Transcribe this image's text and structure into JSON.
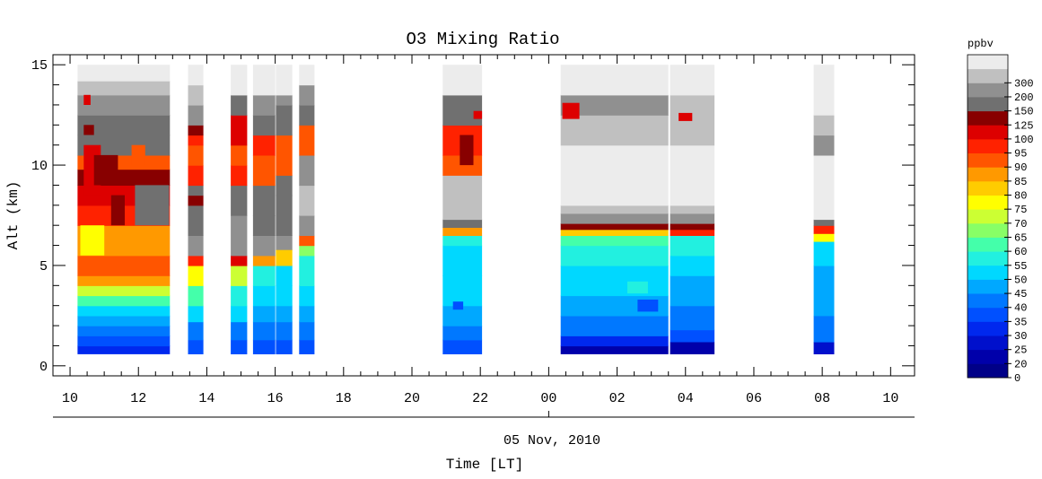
{
  "chart_data": {
    "type": "heatmap",
    "title": "O3 Mixing Ratio",
    "ylabel": "Alt (km)",
    "xlabel": "Time [LT]",
    "date_label": "05 Nov, 2010",
    "colorbar_unit": "ppbv",
    "x_range_hours": [
      9.5,
      34.7
    ],
    "ylim": [
      -0.5,
      15.5
    ],
    "y_ticks": [
      0,
      5,
      10,
      15
    ],
    "x_ticks": [
      {
        "h": 10,
        "label": "10"
      },
      {
        "h": 12,
        "label": "12"
      },
      {
        "h": 14,
        "label": "14"
      },
      {
        "h": 16,
        "label": "16"
      },
      {
        "h": 18,
        "label": "18"
      },
      {
        "h": 20,
        "label": "20"
      },
      {
        "h": 22,
        "label": "22"
      },
      {
        "h": 24,
        "label": "00"
      },
      {
        "h": 26,
        "label": "02"
      },
      {
        "h": 28,
        "label": "04"
      },
      {
        "h": 30,
        "label": "06"
      },
      {
        "h": 32,
        "label": "08"
      },
      {
        "h": 34,
        "label": "10"
      }
    ],
    "color_levels": [
      {
        "label": "0",
        "color": "#000088"
      },
      {
        "label": "20",
        "color": "#0000aa"
      },
      {
        "label": "25",
        "color": "#0010cc"
      },
      {
        "label": "30",
        "color": "#0028ee"
      },
      {
        "label": "35",
        "color": "#0050ff"
      },
      {
        "label": "40",
        "color": "#0078ff"
      },
      {
        "label": "45",
        "color": "#00a8ff"
      },
      {
        "label": "50",
        "color": "#00d8ff"
      },
      {
        "label": "55",
        "color": "#22f0e0"
      },
      {
        "label": "60",
        "color": "#44ffaa"
      },
      {
        "label": "65",
        "color": "#88ff66"
      },
      {
        "label": "70",
        "color": "#ccff33"
      },
      {
        "label": "75",
        "color": "#ffff00"
      },
      {
        "label": "80",
        "color": "#ffcc00"
      },
      {
        "label": "85",
        "color": "#ff9900"
      },
      {
        "label": "90",
        "color": "#ff5500"
      },
      {
        "label": "95",
        "color": "#ff2200"
      },
      {
        "label": "100",
        "color": "#dd0000"
      },
      {
        "label": "125",
        "color": "#880000"
      },
      {
        "label": "150",
        "color": "#707070"
      },
      {
        "label": "200",
        "color": "#909090"
      },
      {
        "label": "300",
        "color": "#c0c0c0"
      },
      {
        "label": "",
        "color": "#ececec"
      }
    ],
    "profiles": [
      {
        "start": 10.22,
        "end": 12.92,
        "top": 15.0,
        "layers": [
          {
            "from": 0.6,
            "to": 1.0,
            "level": 3
          },
          {
            "from": 1.0,
            "to": 1.5,
            "level": 4
          },
          {
            "from": 1.5,
            "to": 2.0,
            "level": 5
          },
          {
            "from": 2.0,
            "to": 2.5,
            "level": 6
          },
          {
            "from": 2.5,
            "to": 3.0,
            "level": 7
          },
          {
            "from": 3.0,
            "to": 3.5,
            "level": 9
          },
          {
            "from": 3.5,
            "to": 4.0,
            "level": 11
          },
          {
            "from": 4.0,
            "to": 4.5,
            "level": 14
          },
          {
            "from": 4.5,
            "to": 5.5,
            "level": 15
          },
          {
            "from": 5.5,
            "to": 7.0,
            "level": 14
          },
          {
            "from": 7.0,
            "to": 8.0,
            "level": 16
          },
          {
            "from": 8.0,
            "to": 9.0,
            "level": 17
          },
          {
            "from": 9.0,
            "to": 9.8,
            "level": 18
          },
          {
            "from": 9.8,
            "to": 10.5,
            "level": 15
          },
          {
            "from": 10.5,
            "to": 11.5,
            "level": 19
          },
          {
            "from": 11.5,
            "to": 12.5,
            "level": 19
          },
          {
            "from": 12.5,
            "to": 13.5,
            "level": 20
          },
          {
            "from": 13.5,
            "to": 14.2,
            "level": 21
          },
          {
            "from": 14.2,
            "to": 15.0,
            "level": 22
          }
        ]
      },
      {
        "start": 13.45,
        "end": 13.9,
        "top": 15.0,
        "layers": [
          {
            "from": 0.6,
            "to": 1.3,
            "level": 4
          },
          {
            "from": 1.3,
            "to": 2.2,
            "level": 5
          },
          {
            "from": 2.2,
            "to": 3.0,
            "level": 7
          },
          {
            "from": 3.0,
            "to": 4.0,
            "level": 9
          },
          {
            "from": 4.0,
            "to": 5.0,
            "level": 12
          },
          {
            "from": 5.0,
            "to": 5.5,
            "level": 16
          },
          {
            "from": 5.5,
            "to": 6.5,
            "level": 20
          },
          {
            "from": 6.5,
            "to": 8.0,
            "level": 19
          },
          {
            "from": 8.0,
            "to": 8.5,
            "level": 18
          },
          {
            "from": 8.5,
            "to": 9.0,
            "level": 19
          },
          {
            "from": 9.0,
            "to": 10.0,
            "level": 16
          },
          {
            "from": 10.0,
            "to": 11.0,
            "level": 15
          },
          {
            "from": 11.0,
            "to": 11.5,
            "level": 16
          },
          {
            "from": 11.5,
            "to": 12.0,
            "level": 18
          },
          {
            "from": 12.0,
            "to": 13.0,
            "level": 20
          },
          {
            "from": 13.0,
            "to": 14.0,
            "level": 21
          },
          {
            "from": 14.0,
            "to": 15.0,
            "level": 22
          }
        ]
      },
      {
        "start": 14.7,
        "end": 15.18,
        "top": 15.0,
        "layers": [
          {
            "from": 0.6,
            "to": 1.3,
            "level": 4
          },
          {
            "from": 1.3,
            "to": 2.2,
            "level": 5
          },
          {
            "from": 2.2,
            "to": 3.0,
            "level": 7
          },
          {
            "from": 3.0,
            "to": 4.0,
            "level": 8
          },
          {
            "from": 4.0,
            "to": 5.0,
            "level": 11
          },
          {
            "from": 5.0,
            "to": 5.5,
            "level": 17
          },
          {
            "from": 5.5,
            "to": 7.5,
            "level": 20
          },
          {
            "from": 7.5,
            "to": 9.0,
            "level": 19
          },
          {
            "from": 9.0,
            "to": 10.0,
            "level": 16
          },
          {
            "from": 10.0,
            "to": 11.0,
            "level": 15
          },
          {
            "from": 11.0,
            "to": 12.5,
            "level": 17
          },
          {
            "from": 12.5,
            "to": 13.5,
            "level": 19
          },
          {
            "from": 13.5,
            "to": 15.0,
            "level": 22
          }
        ]
      },
      {
        "start": 15.35,
        "end": 16.0,
        "top": 15.0,
        "layers": [
          {
            "from": 0.6,
            "to": 1.3,
            "level": 4
          },
          {
            "from": 1.3,
            "to": 2.2,
            "level": 5
          },
          {
            "from": 2.2,
            "to": 3.0,
            "level": 6
          },
          {
            "from": 3.0,
            "to": 4.0,
            "level": 7
          },
          {
            "from": 4.0,
            "to": 5.0,
            "level": 8
          },
          {
            "from": 5.0,
            "to": 5.5,
            "level": 14
          },
          {
            "from": 5.5,
            "to": 6.5,
            "level": 20
          },
          {
            "from": 6.5,
            "to": 7.5,
            "level": 19
          },
          {
            "from": 7.5,
            "to": 9.0,
            "level": 19
          },
          {
            "from": 9.0,
            "to": 10.5,
            "level": 15
          },
          {
            "from": 10.5,
            "to": 11.5,
            "level": 16
          },
          {
            "from": 11.5,
            "to": 12.5,
            "level": 19
          },
          {
            "from": 12.5,
            "to": 13.5,
            "level": 20
          },
          {
            "from": 13.5,
            "to": 15.0,
            "level": 22
          }
        ]
      },
      {
        "start": 16.02,
        "end": 16.5,
        "top": 15.0,
        "layers": [
          {
            "from": 0.6,
            "to": 1.3,
            "level": 4
          },
          {
            "from": 1.3,
            "to": 2.2,
            "level": 5
          },
          {
            "from": 2.2,
            "to": 3.0,
            "level": 6
          },
          {
            "from": 3.0,
            "to": 4.0,
            "level": 7
          },
          {
            "from": 4.0,
            "to": 5.0,
            "level": 7
          },
          {
            "from": 5.0,
            "to": 5.8,
            "level": 13
          },
          {
            "from": 5.8,
            "to": 6.5,
            "level": 20
          },
          {
            "from": 6.5,
            "to": 8.5,
            "level": 19
          },
          {
            "from": 8.5,
            "to": 9.5,
            "level": 19
          },
          {
            "from": 9.5,
            "to": 11.5,
            "level": 15
          },
          {
            "from": 11.5,
            "to": 13.0,
            "level": 19
          },
          {
            "from": 13.0,
            "to": 13.5,
            "level": 20
          },
          {
            "from": 13.5,
            "to": 15.0,
            "level": 22
          }
        ]
      },
      {
        "start": 16.7,
        "end": 17.15,
        "top": 15.0,
        "layers": [
          {
            "from": 0.6,
            "to": 1.3,
            "level": 4
          },
          {
            "from": 1.3,
            "to": 2.2,
            "level": 5
          },
          {
            "from": 2.2,
            "to": 3.0,
            "level": 6
          },
          {
            "from": 3.0,
            "to": 4.0,
            "level": 7
          },
          {
            "from": 4.0,
            "to": 5.5,
            "level": 8
          },
          {
            "from": 5.5,
            "to": 6.0,
            "level": 10
          },
          {
            "from": 6.0,
            "to": 6.5,
            "level": 15
          },
          {
            "from": 6.5,
            "to": 7.5,
            "level": 20
          },
          {
            "from": 7.5,
            "to": 9.0,
            "level": 21
          },
          {
            "from": 9.0,
            "to": 10.5,
            "level": 20
          },
          {
            "from": 10.5,
            "to": 12.0,
            "level": 15
          },
          {
            "from": 12.0,
            "to": 13.0,
            "level": 19
          },
          {
            "from": 13.0,
            "to": 14.0,
            "level": 20
          },
          {
            "from": 14.0,
            "to": 15.0,
            "level": 22
          }
        ]
      },
      {
        "start": 20.9,
        "end": 22.05,
        "top": 15.0,
        "layers": [
          {
            "from": 0.6,
            "to": 1.3,
            "level": 4
          },
          {
            "from": 1.3,
            "to": 2.0,
            "level": 5
          },
          {
            "from": 2.0,
            "to": 3.0,
            "level": 6
          },
          {
            "from": 3.0,
            "to": 4.5,
            "level": 7
          },
          {
            "from": 4.5,
            "to": 6.0,
            "level": 7
          },
          {
            "from": 6.0,
            "to": 6.5,
            "level": 8
          },
          {
            "from": 6.5,
            "to": 6.9,
            "level": 14
          },
          {
            "from": 6.9,
            "to": 7.3,
            "level": 19
          },
          {
            "from": 7.3,
            "to": 9.5,
            "level": 21
          },
          {
            "from": 9.5,
            "to": 10.5,
            "level": 15
          },
          {
            "from": 10.5,
            "to": 12.0,
            "level": 16
          },
          {
            "from": 12.0,
            "to": 13.5,
            "level": 19
          },
          {
            "from": 13.5,
            "to": 15.0,
            "level": 22
          }
        ]
      },
      {
        "start": 24.35,
        "end": 27.5,
        "top": 15.0,
        "layers": [
          {
            "from": 0.6,
            "to": 1.0,
            "level": 1
          },
          {
            "from": 1.0,
            "to": 1.5,
            "level": 3
          },
          {
            "from": 1.5,
            "to": 2.5,
            "level": 5
          },
          {
            "from": 2.5,
            "to": 3.5,
            "level": 6
          },
          {
            "from": 3.5,
            "to": 5.0,
            "level": 7
          },
          {
            "from": 5.0,
            "to": 6.0,
            "level": 8
          },
          {
            "from": 6.0,
            "to": 6.5,
            "level": 9
          },
          {
            "from": 6.5,
            "to": 6.8,
            "level": 13
          },
          {
            "from": 6.8,
            "to": 7.1,
            "level": 18
          },
          {
            "from": 7.1,
            "to": 7.6,
            "level": 20
          },
          {
            "from": 7.6,
            "to": 8.0,
            "level": 21
          },
          {
            "from": 8.0,
            "to": 11.0,
            "level": 22
          },
          {
            "from": 11.0,
            "to": 12.5,
            "level": 21
          },
          {
            "from": 12.5,
            "to": 13.5,
            "level": 20
          },
          {
            "from": 13.5,
            "to": 15.0,
            "level": 22
          }
        ]
      },
      {
        "start": 27.55,
        "end": 28.85,
        "top": 15.0,
        "layers": [
          {
            "from": 0.6,
            "to": 1.2,
            "level": 1
          },
          {
            "from": 1.2,
            "to": 1.8,
            "level": 4
          },
          {
            "from": 1.8,
            "to": 3.0,
            "level": 5
          },
          {
            "from": 3.0,
            "to": 4.5,
            "level": 6
          },
          {
            "from": 4.5,
            "to": 5.5,
            "level": 7
          },
          {
            "from": 5.5,
            "to": 6.5,
            "level": 8
          },
          {
            "from": 6.5,
            "to": 6.8,
            "level": 16
          },
          {
            "from": 6.8,
            "to": 7.1,
            "level": 18
          },
          {
            "from": 7.1,
            "to": 7.6,
            "level": 20
          },
          {
            "from": 7.6,
            "to": 8.0,
            "level": 21
          },
          {
            "from": 8.0,
            "to": 11.0,
            "level": 22
          },
          {
            "from": 11.0,
            "to": 12.5,
            "level": 21
          },
          {
            "from": 12.5,
            "to": 13.5,
            "level": 21
          },
          {
            "from": 13.5,
            "to": 15.0,
            "level": 22
          }
        ]
      },
      {
        "start": 31.75,
        "end": 32.35,
        "top": 15.0,
        "layers": [
          {
            "from": 0.6,
            "to": 1.2,
            "level": 2
          },
          {
            "from": 1.2,
            "to": 2.5,
            "level": 5
          },
          {
            "from": 2.5,
            "to": 5.0,
            "level": 6
          },
          {
            "from": 5.0,
            "to": 6.2,
            "level": 7
          },
          {
            "from": 6.2,
            "to": 6.6,
            "level": 12
          },
          {
            "from": 6.6,
            "to": 7.0,
            "level": 16
          },
          {
            "from": 7.0,
            "to": 7.3,
            "level": 19
          },
          {
            "from": 7.3,
            "to": 10.5,
            "level": 22
          },
          {
            "from": 10.5,
            "to": 11.5,
            "level": 20
          },
          {
            "from": 11.5,
            "to": 12.5,
            "level": 21
          },
          {
            "from": 12.5,
            "to": 15.0,
            "level": 22
          }
        ]
      }
    ],
    "features": [
      {
        "t0": 10.4,
        "t1": 10.9,
        "y0": 8.5,
        "y1": 11.0,
        "level": 17
      },
      {
        "t0": 10.4,
        "t1": 10.7,
        "y0": 11.5,
        "y1": 12.0,
        "level": 18
      },
      {
        "t0": 10.4,
        "t1": 10.6,
        "y0": 13.0,
        "y1": 13.5,
        "level": 17
      },
      {
        "t0": 10.7,
        "t1": 11.4,
        "y0": 9.0,
        "y1": 10.5,
        "level": 18
      },
      {
        "t0": 11.2,
        "t1": 11.6,
        "y0": 7.0,
        "y1": 8.5,
        "level": 18
      },
      {
        "t0": 11.8,
        "t1": 12.2,
        "y0": 10.0,
        "y1": 11.0,
        "level": 15
      },
      {
        "t0": 11.9,
        "t1": 12.9,
        "y0": 7.0,
        "y1": 9.0,
        "level": 19
      },
      {
        "t0": 10.3,
        "t1": 11.0,
        "y0": 5.5,
        "y1": 7.0,
        "level": 12
      },
      {
        "t0": 21.4,
        "t1": 21.8,
        "y0": 10.0,
        "y1": 11.5,
        "level": 18
      },
      {
        "t0": 21.8,
        "t1": 22.05,
        "y0": 12.3,
        "y1": 12.7,
        "level": 17
      },
      {
        "t0": 24.4,
        "t1": 24.9,
        "y0": 12.3,
        "y1": 13.1,
        "level": 17
      },
      {
        "t0": 26.3,
        "t1": 26.9,
        "y0": 3.6,
        "y1": 4.2,
        "level": 8
      },
      {
        "t0": 26.6,
        "t1": 27.2,
        "y0": 2.7,
        "y1": 3.3,
        "level": 4
      },
      {
        "t0": 21.2,
        "t1": 21.5,
        "y0": 2.8,
        "y1": 3.2,
        "level": 4
      },
      {
        "t0": 27.8,
        "t1": 28.2,
        "y0": 12.2,
        "y1": 12.6,
        "level": 17
      }
    ]
  }
}
